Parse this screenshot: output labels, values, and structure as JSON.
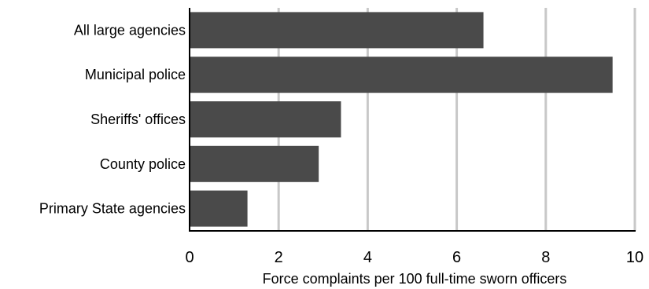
{
  "chart_data": {
    "type": "bar",
    "orientation": "horizontal",
    "categories": [
      "All large agencies",
      "Municipal police",
      "Sheriffs' offices",
      "County police",
      "Primary State agencies"
    ],
    "values": [
      6.6,
      9.5,
      3.4,
      2.9,
      1.3
    ],
    "xlabel": "Force complaints per 100 full-time sworn officers",
    "ylabel": "",
    "title": "",
    "xlim": [
      0,
      10
    ],
    "xticks": [
      0,
      2,
      4,
      6,
      8,
      10
    ],
    "grid": "vertical",
    "legend": "none",
    "colors": {
      "bar": "#4a4a4a",
      "grid": "#c8c8c8",
      "axis": "#000000"
    }
  }
}
